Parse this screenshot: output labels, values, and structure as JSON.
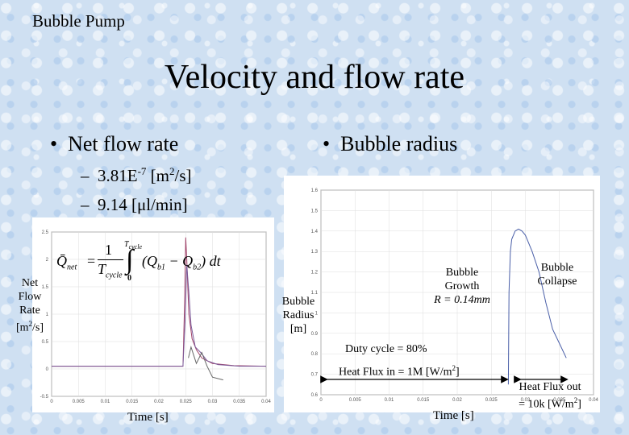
{
  "header": "Bubble Pump",
  "title": "Velocity and flow rate",
  "bullets": {
    "left": "Net flow rate",
    "right": "Bubble radius"
  },
  "flow_values": [
    {
      "dash": "–",
      "value": "3.81E",
      "exp": "-7",
      "unit_pre": " [m",
      "unit_exp": "2",
      "unit_post": "/s]"
    },
    {
      "dash": "–",
      "value": "9.14 [μl/min]"
    }
  ],
  "formula": {
    "lhs": "Q̄",
    "lhs_sub": "net",
    "one": "1",
    "denominator": "T",
    "denominator_sub": "cycle",
    "upper_limit": "T",
    "upper_limit_sub": "cycle",
    "lower_limit": "0",
    "q1": "Q",
    "q1_sub": "b1",
    "q2": "Q",
    "q2_sub": "b2",
    "dt": "dt"
  },
  "left_chart": {
    "ylabel_lines": [
      "Net",
      "Flow",
      "Rate"
    ],
    "ylabel_unit": {
      "pre": "[m",
      "exp": "2",
      "post": "/s]"
    },
    "xlabel": "Time [s]"
  },
  "right_chart": {
    "ylabel_lines": [
      "Bubble",
      "Radius",
      "[m]"
    ],
    "xlabel": "Time [s]",
    "growth_label": [
      "Bubble",
      "Growth",
      "R = 0.14mm"
    ],
    "collapse_label": [
      "Bubble",
      "Collapse"
    ],
    "duty_cycle": "Duty cycle = 80%",
    "heat_in": {
      "text": "Heat Flux in = 1M [W/m",
      "exp": "2",
      "post": "]"
    },
    "heat_out": {
      "line1": "Heat Flux out",
      "line2": "= 10k [W/m",
      "exp": "2",
      "post": "]"
    }
  },
  "chart_data": [
    {
      "type": "line",
      "xlim": [
        0,
        0.04
      ],
      "ylim": [
        -0.5,
        2.5
      ],
      "x_ticks": [
        0,
        0.005,
        0.01,
        0.015,
        0.02,
        0.025,
        0.03,
        0.035,
        0.04
      ],
      "y_ticks": [
        -0.5,
        0,
        0.5,
        1,
        1.5,
        2,
        2.5
      ],
      "series": [
        {
          "x": [
            0,
            0.0245,
            0.0248,
            0.025,
            0.0252,
            0.0256,
            0.0262,
            0.027,
            0.028,
            0.03,
            0.034,
            0.04
          ],
          "y": [
            0.05,
            0.05,
            1.2,
            2.4,
            2.0,
            1.0,
            0.55,
            0.35,
            0.2,
            0.1,
            0.06,
            0.05
          ]
        },
        {
          "x": [
            0,
            0.0245,
            0.0249,
            0.0252,
            0.0256,
            0.026,
            0.0268,
            0.0278,
            0.029,
            0.031,
            0.035,
            0.04
          ],
          "y": [
            0.05,
            0.05,
            0.9,
            1.9,
            1.4,
            0.8,
            0.4,
            0.3,
            0.15,
            0.08,
            0.05,
            0.05
          ]
        },
        {
          "x": [
            0.0255,
            0.026,
            0.027,
            0.028,
            0.029,
            0.03,
            0.032
          ],
          "y": [
            0.2,
            0.4,
            0.1,
            0.3,
            0.05,
            -0.15,
            -0.2
          ]
        }
      ]
    },
    {
      "type": "line",
      "xlim": [
        0,
        0.04
      ],
      "ylim": [
        0.6,
        1.6
      ],
      "x_ticks": [
        0,
        0.005,
        0.01,
        0.015,
        0.02,
        0.025,
        0.03,
        0.035,
        0.04
      ],
      "y_ticks": [
        0.6,
        0.7,
        0.8,
        0.9,
        1.0,
        1.1,
        1.2,
        1.3,
        1.4,
        1.5,
        1.6
      ],
      "series": [
        {
          "x": [
            0.0275,
            0.0276,
            0.0278,
            0.028,
            0.0285,
            0.029,
            0.0295,
            0.03,
            0.031,
            0.032,
            0.033,
            0.034,
            0.035,
            0.036
          ],
          "y": [
            0.65,
            1.1,
            1.3,
            1.36,
            1.4,
            1.41,
            1.4,
            1.38,
            1.3,
            1.2,
            1.05,
            0.92,
            0.85,
            0.78
          ]
        }
      ]
    }
  ]
}
